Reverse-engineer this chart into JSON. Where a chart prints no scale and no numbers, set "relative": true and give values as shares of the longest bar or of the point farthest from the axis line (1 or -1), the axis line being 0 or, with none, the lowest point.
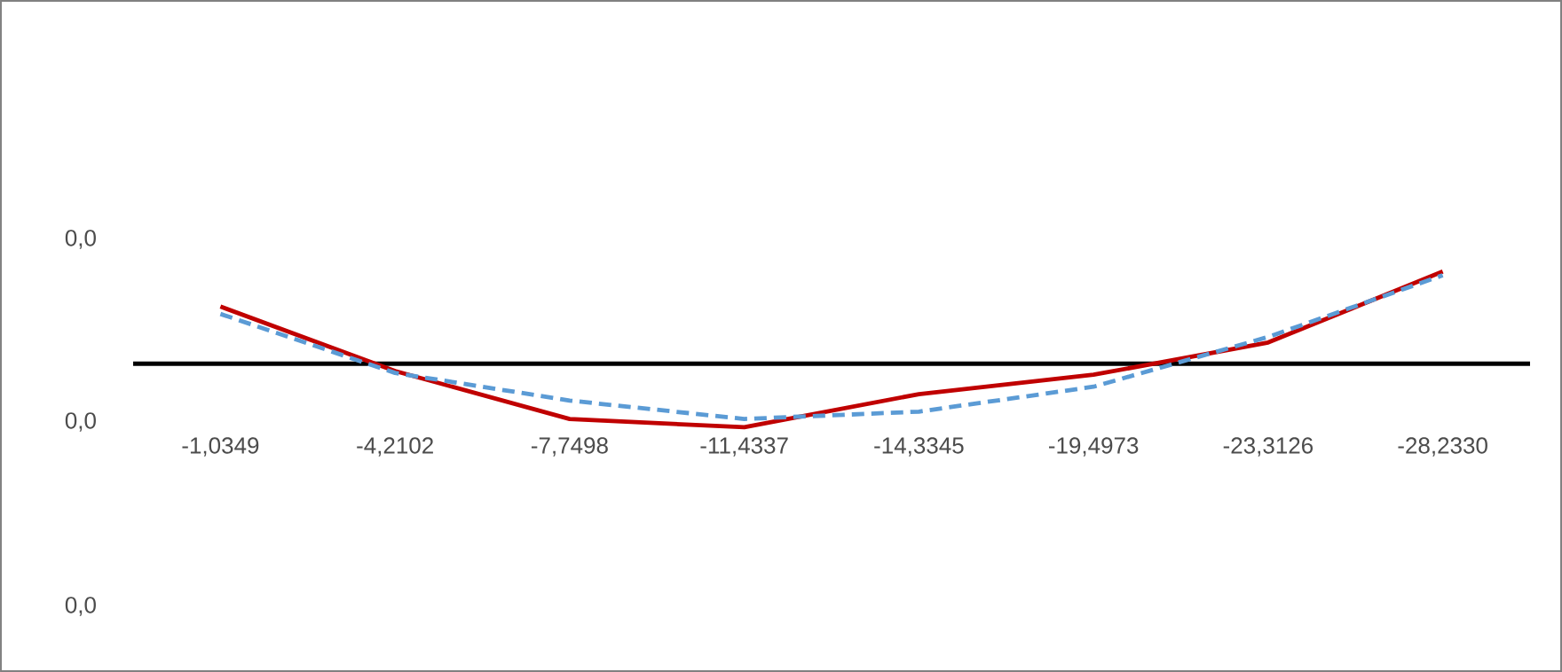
{
  "chart_data": {
    "type": "line",
    "relative": true,
    "categories": [
      "-1,0349",
      "-4,2102",
      "-7,7498",
      "-11,4337",
      "-14,3345",
      "-19,4973",
      "-23,3126",
      "-28,2330"
    ],
    "annotations": [
      "0,0",
      "0,0",
      "0,0"
    ],
    "series": [
      {
        "color": "#c00000",
        "line_style": "solid",
        "values": [
          0.62,
          -0.08,
          -0.6,
          -0.69,
          -0.33,
          -0.12,
          0.23,
          1
        ]
      },
      {
        "color": "#5b9bd5",
        "line_style": "dashed",
        "values": [
          0.54,
          -0.1,
          -0.4,
          -0.6,
          -0.52,
          -0.25,
          0.29,
          0.96
        ]
      }
    ],
    "grid": false,
    "marker": "none"
  }
}
